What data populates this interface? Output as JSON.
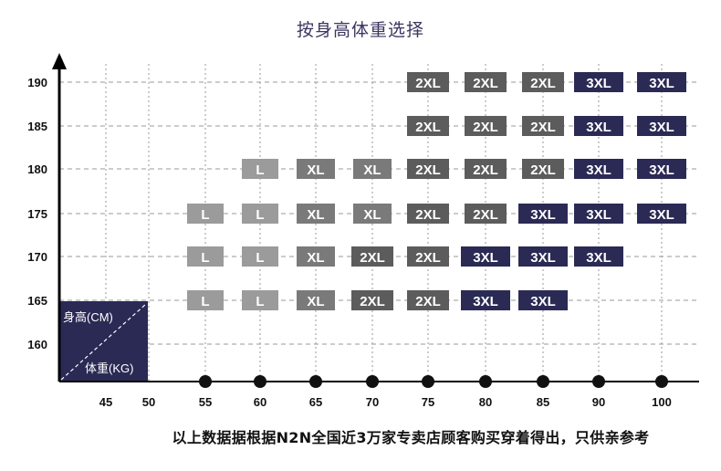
{
  "title": "按身高体重选择",
  "footer_note": "以上数据据根据N2N全国近3万家专卖店顾客购买穿着得出，只供亲参考",
  "colors": {
    "L": "#9b9b9b",
    "XL": "#7a7a7a",
    "2XL": "#5c5c5c",
    "3XL": "#2b2a55",
    "corner_box": "#2b2a55",
    "axis": "#000000",
    "grid": "#9a9a9a"
  },
  "chart_data": {
    "type": "table",
    "title": "按身高体重选择",
    "corner_label_height": "身高(CM)",
    "corner_label_weight": "体重(KG)",
    "x_ticks": [
      "45",
      "50",
      "55",
      "60",
      "65",
      "70",
      "75",
      "80",
      "85",
      "90",
      "100"
    ],
    "y_ticks": [
      "190",
      "185",
      "180",
      "175",
      "170",
      "165",
      "160"
    ],
    "grid": true,
    "weights": [
      55,
      60,
      65,
      70,
      75,
      80,
      85,
      90,
      100
    ],
    "rows": [
      {
        "height": 190,
        "sizes": [
          "",
          "",
          "",
          "",
          "2XL",
          "2XL",
          "2XL",
          "3XL",
          "3XL"
        ]
      },
      {
        "height": 185,
        "sizes": [
          "",
          "",
          "",
          "",
          "2XL",
          "2XL",
          "2XL",
          "3XL",
          "3XL"
        ]
      },
      {
        "height": 180,
        "sizes": [
          "",
          "L",
          "XL",
          "XL",
          "2XL",
          "2XL",
          "2XL",
          "3XL",
          "3XL"
        ]
      },
      {
        "height": 175,
        "sizes": [
          "L",
          "L",
          "XL",
          "XL",
          "2XL",
          "2XL",
          "3XL",
          "3XL",
          "3XL"
        ]
      },
      {
        "height": 170,
        "sizes": [
          "L",
          "L",
          "XL",
          "2XL",
          "2XL",
          "3XL",
          "3XL",
          "3XL",
          ""
        ]
      },
      {
        "height": 165,
        "sizes": [
          "L",
          "L",
          "XL",
          "2XL",
          "2XL",
          "3XL",
          "3XL",
          "",
          ""
        ]
      }
    ]
  }
}
